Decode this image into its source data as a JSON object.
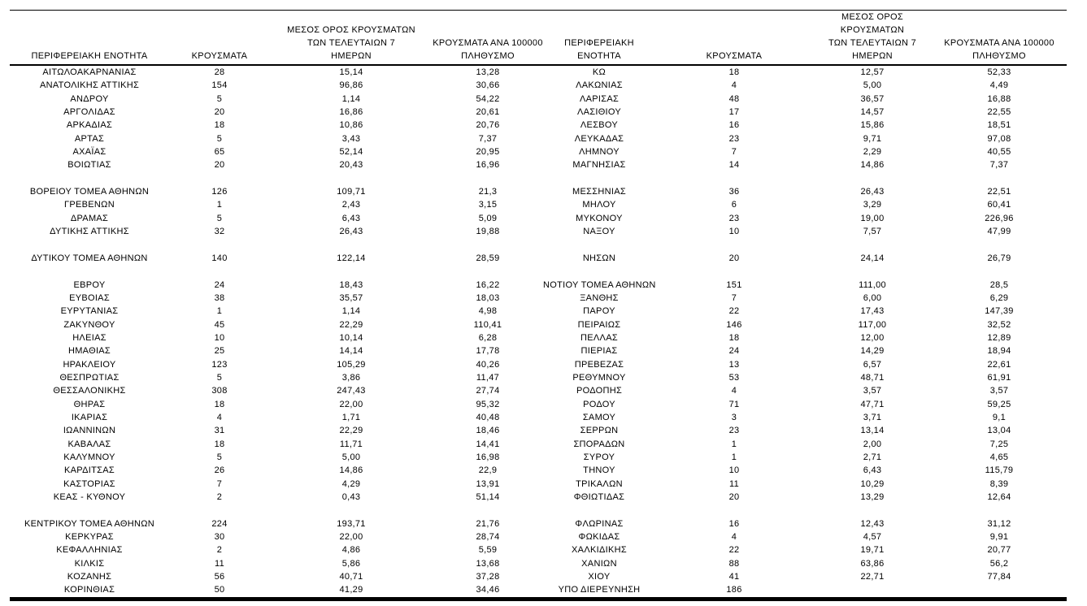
{
  "table": {
    "header": {
      "region": "ΠΕΡΙΦΕΡΕΙΑΚΗ ΕΝΟΤΗΤΑ",
      "cases": "ΚΡΟΥΣΜΑΤΑ",
      "avg7": "ΜΕΣΟΣ ΟΡΟΣ ΚΡΟΥΣΜΑΤΩΝ\nΤΩΝ ΤΕΛΕΥΤΑΙΩΝ 7\nΗΜΕΡΩΝ",
      "per100k": "ΚΡΟΥΣΜΑΤΑ ΑΝΑ 100000\nΠΛΗΘΥΣΜΟ"
    },
    "rows": [
      {
        "left": [
          "ΑΙΤΩΛΟΑΚΑΡΝΑΝΙΑΣ",
          "28",
          "15,14",
          "13,28"
        ],
        "right": [
          "ΚΩ",
          "18",
          "12,57",
          "52,33"
        ]
      },
      {
        "left": [
          "ΑΝΑΤΟΛΙΚΗΣ ΑΤΤΙΚΗΣ",
          "154",
          "96,86",
          "30,66"
        ],
        "right": [
          "ΛΑΚΩΝΙΑΣ",
          "4",
          "5,00",
          "4,49"
        ]
      },
      {
        "left": [
          "ΑΝΔΡΟΥ",
          "5",
          "1,14",
          "54,22"
        ],
        "right": [
          "ΛΑΡΙΣΑΣ",
          "48",
          "36,57",
          "16,88"
        ]
      },
      {
        "left": [
          "ΑΡΓΟΛΙΔΑΣ",
          "20",
          "16,86",
          "20,61"
        ],
        "right": [
          "ΛΑΣΙΘΙΟΥ",
          "17",
          "14,57",
          "22,55"
        ]
      },
      {
        "left": [
          "ΑΡΚΑΔΙΑΣ",
          "18",
          "10,86",
          "20,76"
        ],
        "right": [
          "ΛΕΣΒΟΥ",
          "16",
          "15,86",
          "18,51"
        ]
      },
      {
        "left": [
          "ΑΡΤΑΣ",
          "5",
          "3,43",
          "7,37"
        ],
        "right": [
          "ΛΕΥΚΑΔΑΣ",
          "23",
          "9,71",
          "97,08"
        ]
      },
      {
        "left": [
          "ΑΧΑΪΑΣ",
          "65",
          "52,14",
          "20,95"
        ],
        "right": [
          "ΛΗΜΝΟΥ",
          "7",
          "2,29",
          "40,55"
        ]
      },
      {
        "left": [
          "ΒΟΙΩΤΙΑΣ",
          "20",
          "20,43",
          "16,96"
        ],
        "right": [
          "ΜΑΓΝΗΣΙΑΣ",
          "14",
          "14,86",
          "7,37"
        ]
      },
      {
        "spacer": true
      },
      {
        "left": [
          "ΒΟΡΕΙΟΥ ΤΟΜΕΑ ΑΘΗΝΩΝ",
          "126",
          "109,71",
          "21,3"
        ],
        "right": [
          "ΜΕΣΣΗΝΙΑΣ",
          "36",
          "26,43",
          "22,51"
        ]
      },
      {
        "left": [
          "ΓΡΕΒΕΝΩΝ",
          "1",
          "2,43",
          "3,15"
        ],
        "right": [
          "ΜΗΛΟΥ",
          "6",
          "3,29",
          "60,41"
        ]
      },
      {
        "left": [
          "ΔΡΑΜΑΣ",
          "5",
          "6,43",
          "5,09"
        ],
        "right": [
          "ΜΥΚΟΝΟΥ",
          "23",
          "19,00",
          "226,96"
        ]
      },
      {
        "left": [
          "ΔΥΤΙΚΗΣ ΑΤΤΙΚΗΣ",
          "32",
          "26,43",
          "19,88"
        ],
        "right": [
          "ΝΑΞΟΥ",
          "10",
          "7,57",
          "47,99"
        ]
      },
      {
        "spacer": true
      },
      {
        "left": [
          "ΔΥΤΙΚΟΥ ΤΟΜΕΑ ΑΘΗΝΩΝ",
          "140",
          "122,14",
          "28,59"
        ],
        "right": [
          "ΝΗΣΩΝ",
          "20",
          "24,14",
          "26,79"
        ]
      },
      {
        "spacer": true
      },
      {
        "left": [
          "ΕΒΡΟΥ",
          "24",
          "18,43",
          "16,22"
        ],
        "right": [
          "ΝΟΤΙΟΥ ΤΟΜΕΑ ΑΘΗΝΩΝ",
          "151",
          "111,00",
          "28,5"
        ]
      },
      {
        "left": [
          "ΕΥΒΟΙΑΣ",
          "38",
          "35,57",
          "18,03"
        ],
        "right": [
          "ΞΑΝΘΗΣ",
          "7",
          "6,00",
          "6,29"
        ]
      },
      {
        "left": [
          "ΕΥΡΥΤΑΝΙΑΣ",
          "1",
          "1,14",
          "4,98"
        ],
        "right": [
          "ΠΑΡΟΥ",
          "22",
          "17,43",
          "147,39"
        ]
      },
      {
        "left": [
          "ΖΑΚΥΝΘΟΥ",
          "45",
          "22,29",
          "110,41"
        ],
        "right": [
          "ΠΕΙΡΑΙΩΣ",
          "146",
          "117,00",
          "32,52"
        ]
      },
      {
        "left": [
          "ΗΛΕΙΑΣ",
          "10",
          "10,14",
          "6,28"
        ],
        "right": [
          "ΠΕΛΛΑΣ",
          "18",
          "12,00",
          "12,89"
        ]
      },
      {
        "left": [
          "ΗΜΑΘΙΑΣ",
          "25",
          "14,14",
          "17,78"
        ],
        "right": [
          "ΠΙΕΡΙΑΣ",
          "24",
          "14,29",
          "18,94"
        ]
      },
      {
        "left": [
          "ΗΡΑΚΛΕΙΟΥ",
          "123",
          "105,29",
          "40,26"
        ],
        "right": [
          "ΠΡΕΒΕΖΑΣ",
          "13",
          "6,57",
          "22,61"
        ]
      },
      {
        "left": [
          "ΘΕΣΠΡΩΤΙΑΣ",
          "5",
          "3,86",
          "11,47"
        ],
        "right": [
          "ΡΕΘΥΜΝΟΥ",
          "53",
          "48,71",
          "61,91"
        ]
      },
      {
        "left": [
          "ΘΕΣΣΑΛΟΝΙΚΗΣ",
          "308",
          "247,43",
          "27,74"
        ],
        "right": [
          "ΡΟΔΟΠΗΣ",
          "4",
          "3,57",
          "3,57"
        ]
      },
      {
        "left": [
          "ΘΗΡΑΣ",
          "18",
          "22,00",
          "95,32"
        ],
        "right": [
          "ΡΟΔΟΥ",
          "71",
          "47,71",
          "59,25"
        ]
      },
      {
        "left": [
          "ΙΚΑΡΙΑΣ",
          "4",
          "1,71",
          "40,48"
        ],
        "right": [
          "ΣΑΜΟΥ",
          "3",
          "3,71",
          "9,1"
        ]
      },
      {
        "left": [
          "ΙΩΑΝΝΙΝΩΝ",
          "31",
          "22,29",
          "18,46"
        ],
        "right": [
          "ΣΕΡΡΩΝ",
          "23",
          "13,14",
          "13,04"
        ]
      },
      {
        "left": [
          "ΚΑΒΑΛΑΣ",
          "18",
          "11,71",
          "14,41"
        ],
        "right": [
          "ΣΠΟΡΑΔΩΝ",
          "1",
          "2,00",
          "7,25"
        ]
      },
      {
        "left": [
          "ΚΑΛΥΜΝΟΥ",
          "5",
          "5,00",
          "16,98"
        ],
        "right": [
          "ΣΥΡΟΥ",
          "1",
          "2,71",
          "4,65"
        ]
      },
      {
        "left": [
          "ΚΑΡΔΙΤΣΑΣ",
          "26",
          "14,86",
          "22,9"
        ],
        "right": [
          "ΤΗΝΟΥ",
          "10",
          "6,43",
          "115,79"
        ]
      },
      {
        "left": [
          "ΚΑΣΤΟΡΙΑΣ",
          "7",
          "4,29",
          "13,91"
        ],
        "right": [
          "ΤΡΙΚΑΛΩΝ",
          "11",
          "10,29",
          "8,39"
        ]
      },
      {
        "left": [
          "ΚΕΑΣ - ΚΥΘΝΟΥ",
          "2",
          "0,43",
          "51,14"
        ],
        "right": [
          "ΦΘΙΩΤΙΔΑΣ",
          "20",
          "13,29",
          "12,64"
        ]
      },
      {
        "spacer": true
      },
      {
        "left": [
          "ΚΕΝΤΡΙΚΟΥ ΤΟΜΕΑ ΑΘΗΝΩΝ",
          "224",
          "193,71",
          "21,76"
        ],
        "right": [
          "ΦΛΩΡΙΝΑΣ",
          "16",
          "12,43",
          "31,12"
        ]
      },
      {
        "left": [
          "ΚΕΡΚΥΡΑΣ",
          "30",
          "22,00",
          "28,74"
        ],
        "right": [
          "ΦΩΚΙΔΑΣ",
          "4",
          "4,57",
          "9,91"
        ]
      },
      {
        "left": [
          "ΚΕΦΑΛΛΗΝΙΑΣ",
          "2",
          "4,86",
          "5,59"
        ],
        "right": [
          "ΧΑΛΚΙΔΙΚΗΣ",
          "22",
          "19,71",
          "20,77"
        ]
      },
      {
        "left": [
          "ΚΙΛΚΙΣ",
          "11",
          "5,86",
          "13,68"
        ],
        "right": [
          "ΧΑΝΙΩΝ",
          "88",
          "63,86",
          "56,2"
        ]
      },
      {
        "left": [
          "ΚΟΖΑΝΗΣ",
          "56",
          "40,71",
          "37,28"
        ],
        "right": [
          "ΧΙΟΥ",
          "41",
          "22,71",
          "77,84"
        ]
      },
      {
        "left": [
          "ΚΟΡΙΝΘΙΑΣ",
          "50",
          "41,29",
          "34,46"
        ],
        "right": [
          "ΥΠΟ ΔΙΕΡΕΥΝΗΣΗ",
          "186",
          "",
          ""
        ]
      }
    ]
  }
}
